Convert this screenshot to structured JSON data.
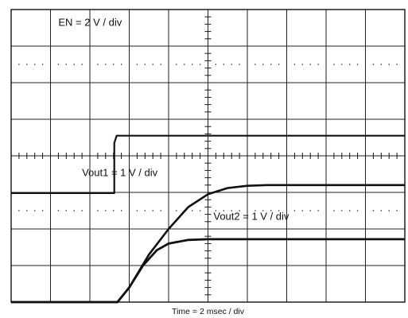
{
  "chart_data": {
    "type": "line",
    "title": "",
    "xlabel": "Time = 2 msec / div",
    "ylabel": "",
    "grid": true,
    "divisions": {
      "x": 10,
      "y": 8
    },
    "xlim_div": [
      0,
      10
    ],
    "ylim_div": [
      0,
      8
    ],
    "series": [
      {
        "name": "EN = 2 V / div",
        "points_div": [
          [
            0,
            2.98
          ],
          [
            2.62,
            2.98
          ],
          [
            2.62,
            4.35
          ],
          [
            2.68,
            4.55
          ],
          [
            10,
            4.55
          ]
        ]
      },
      {
        "name": "Vout1 = 1 V / div",
        "points_div": [
          [
            0,
            0
          ],
          [
            2.7,
            0
          ],
          [
            3.0,
            0.4
          ],
          [
            3.5,
            1.3
          ],
          [
            4.0,
            2.0
          ],
          [
            4.5,
            2.6
          ],
          [
            5.0,
            2.95
          ],
          [
            5.5,
            3.12
          ],
          [
            6.0,
            3.18
          ],
          [
            6.5,
            3.2
          ],
          [
            10,
            3.2
          ]
        ]
      },
      {
        "name": "Vout2 = 1 V / div",
        "points_div": [
          [
            0,
            0
          ],
          [
            2.7,
            0
          ],
          [
            3.0,
            0.4
          ],
          [
            3.35,
            1.0
          ],
          [
            3.7,
            1.42
          ],
          [
            4.0,
            1.6
          ],
          [
            4.5,
            1.7
          ],
          [
            5.0,
            1.72
          ],
          [
            10,
            1.72
          ]
        ]
      }
    ],
    "annotations": [
      {
        "series": "EN = 2 V / div",
        "anchor": "top-left",
        "at_div": [
          1.2,
          7.55
        ]
      },
      {
        "series": "Vout1 = 1 V / div",
        "anchor": "left",
        "at_div": [
          1.8,
          3.45
        ]
      },
      {
        "series": "Vout2 = 1 V / div",
        "anchor": "center",
        "at_div": [
          6.1,
          2.25
        ]
      }
    ]
  }
}
